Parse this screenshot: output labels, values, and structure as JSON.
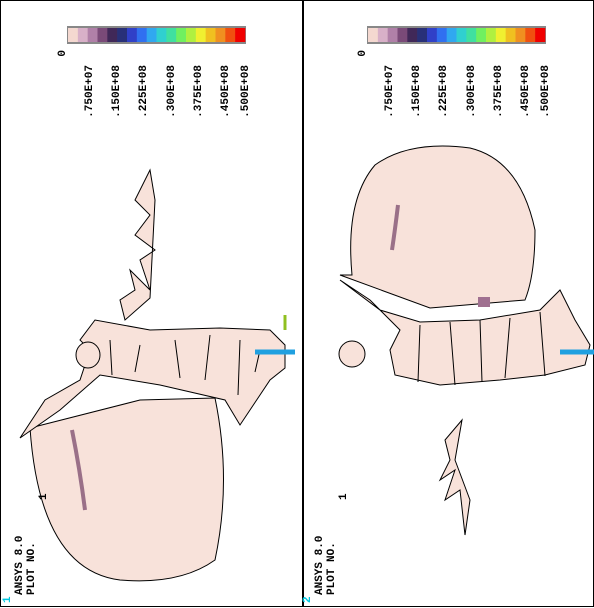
{
  "panels": [
    {
      "window": "1",
      "software": "ANSYS 8.0",
      "plot_label": "PLOT NO.",
      "plot_number": "1"
    },
    {
      "window": "2",
      "software": "ANSYS 8.0",
      "plot_label": "PLOT NO.",
      "plot_number": "1"
    }
  ],
  "legend": {
    "labels": [
      "0",
      ".750E+07",
      ".150E+08",
      ".225E+08",
      ".300E+08",
      ".375E+08",
      ".450E+08",
      ".500E+08"
    ],
    "colors": [
      "#f4d8d0",
      "#d8b0c8",
      "#b080a8",
      "#7a4a78",
      "#402858",
      "#283078",
      "#3040c8",
      "#3070f0",
      "#30a8f0",
      "#30d0d0",
      "#40e0a0",
      "#70f060",
      "#b0f040",
      "#f0f030",
      "#f0c020",
      "#f09020",
      "#f05010",
      "#f00000"
    ]
  }
}
